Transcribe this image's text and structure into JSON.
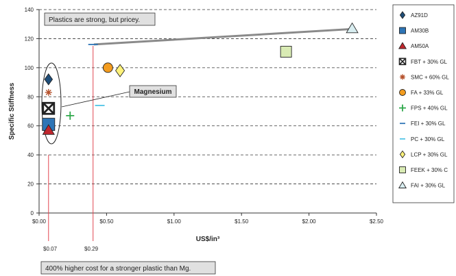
{
  "chart_data": {
    "type": "scatter",
    "title": "",
    "xlabel": "US$/in³",
    "ylabel": "Specific Stiffness",
    "xlim": [
      0,
      2.5
    ],
    "ylim": [
      0,
      140
    ],
    "x_ticks": [
      0,
      0.5,
      1.0,
      1.5,
      2.0,
      2.5
    ],
    "x_tick_labels": [
      "$0.00",
      "$0.50",
      "$1.00",
      "$1.50",
      "$2.00",
      "$2.50"
    ],
    "y_ticks": [
      0,
      20,
      40,
      60,
      80,
      100,
      120,
      140
    ],
    "grid": "horizontal-dashed",
    "legend_position": "right",
    "series": [
      {
        "name": "AZ91D",
        "x": 0.07,
        "y": 92,
        "marker": "diamond",
        "color": "#1f4e79"
      },
      {
        "name": "AM30B",
        "x": 0.07,
        "y": 61,
        "marker": "square",
        "color": "#2e75b6"
      },
      {
        "name": "AM50A",
        "x": 0.07,
        "y": 57,
        "marker": "triangle",
        "color": "#c0262d"
      },
      {
        "name": "FBT + 30% GL",
        "x": 0.07,
        "y": 72,
        "marker": "boxed-x",
        "color": "#222222"
      },
      {
        "name": "SMC + 60% GL",
        "x": 0.07,
        "y": 83,
        "marker": "asterisk",
        "color": "#b5512b"
      },
      {
        "name": "FA + 33% GL",
        "x": 0.51,
        "y": 100,
        "marker": "circle",
        "color": "#f39c1f"
      },
      {
        "name": "FPS + 40% GL",
        "x": 0.23,
        "y": 67,
        "marker": "plus",
        "color": "#2ea84a"
      },
      {
        "name": "FEI + 30% GL",
        "x": 0.4,
        "y": 116,
        "marker": "dash",
        "color": "#2e75b6"
      },
      {
        "name": "PC + 30% GL",
        "x": 0.45,
        "y": 74,
        "marker": "dash",
        "color": "#4fc3e6"
      },
      {
        "name": "LCP + 30% GL",
        "x": 0.6,
        "y": 98,
        "marker": "diamond",
        "color": "#fff27a"
      },
      {
        "name": "FEEK + 30% C",
        "x": 1.83,
        "y": 111,
        "marker": "square",
        "color": "#d9ebb4"
      },
      {
        "name": "FAI + 30% GL",
        "x": 2.32,
        "y": 127,
        "marker": "triangle",
        "color": "#d8edf0"
      }
    ],
    "annotations": {
      "top_note": "Plastics are strong, but pricey.",
      "magnesium_label": "Magnesium",
      "bottom_note": "400% higher cost for a stronger plastic than Mg.",
      "price_markers": [
        {
          "label": "$0.07",
          "x": 0.07
        },
        {
          "label": "$0.29",
          "x": 0.4
        }
      ]
    }
  }
}
